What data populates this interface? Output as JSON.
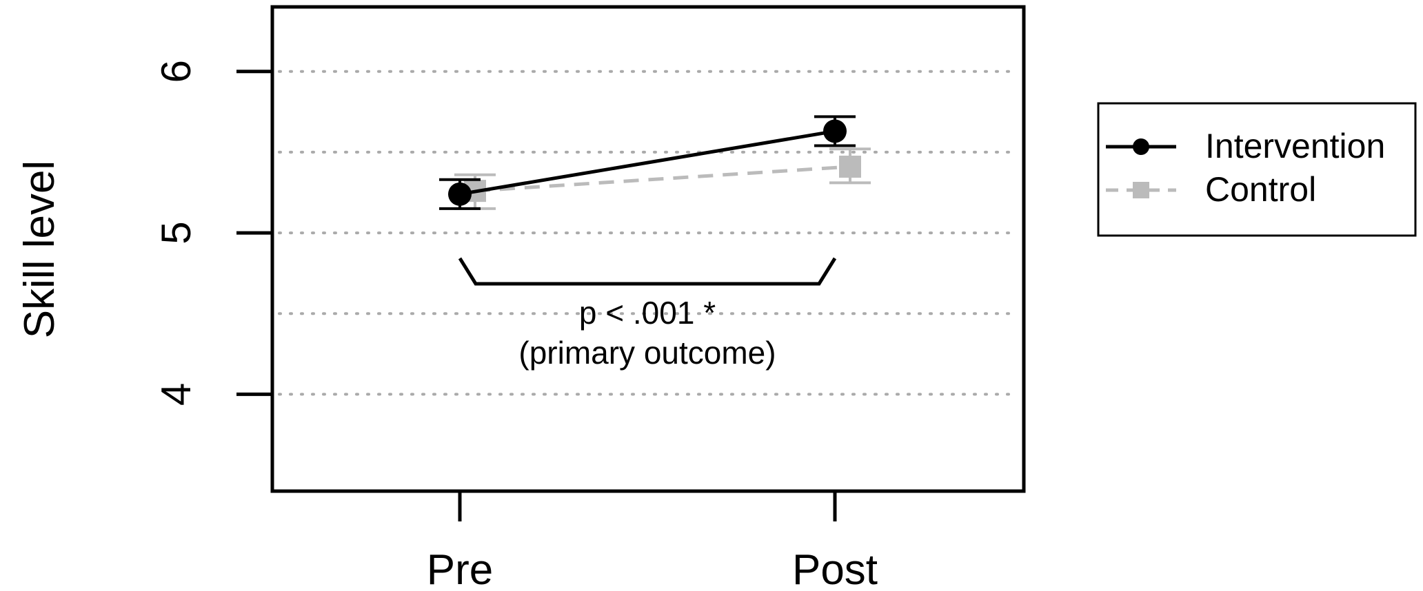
{
  "chart_data": {
    "type": "line",
    "title": "",
    "xlabel": "",
    "ylabel": "Skill level",
    "categories": [
      "Pre",
      "Post"
    ],
    "ylim": [
      3.4,
      6.4
    ],
    "yticks": [
      4,
      5,
      6
    ],
    "grid": true,
    "legend_position": "right",
    "series": [
      {
        "name": "Intervention",
        "values": [
          5.24,
          5.63
        ],
        "error_low": [
          5.15,
          5.54
        ],
        "error_high": [
          5.33,
          5.72
        ],
        "color": "#000000",
        "marker": "circle",
        "line_style": "solid"
      },
      {
        "name": "Control",
        "values": [
          5.26,
          5.41
        ],
        "error_low": [
          5.15,
          5.31
        ],
        "error_high": [
          5.36,
          5.52
        ],
        "color": "#bbbbbb",
        "marker": "square",
        "line_style": "dashed"
      }
    ],
    "annotation": {
      "line1": "p < .001 *",
      "line2": "(primary outcome)"
    }
  }
}
